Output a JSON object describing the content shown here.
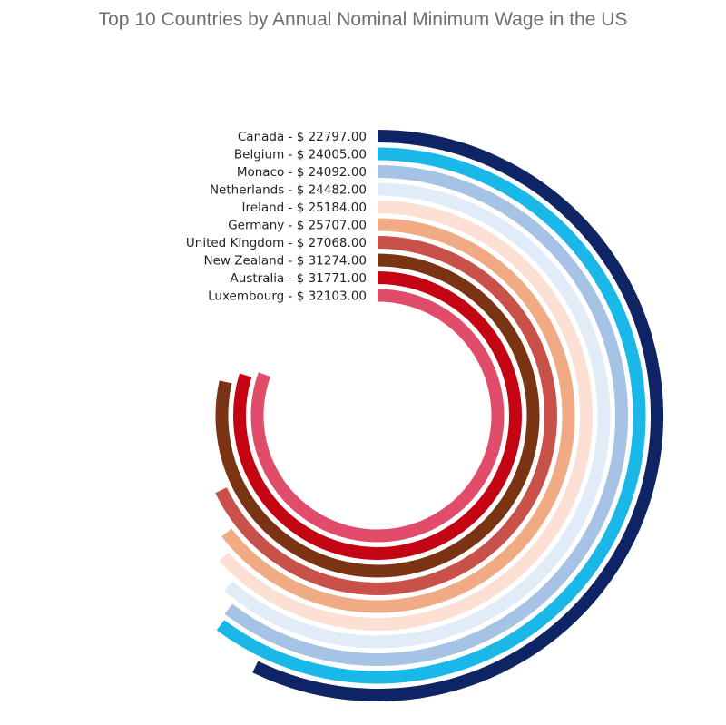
{
  "chart_data": {
    "type": "radial-bar",
    "title": "Top 10 Countries by Annual Nominal Minimum Wage in the US",
    "label_format": "{name} - $ {value}",
    "max_value": 32103.0,
    "bars": [
      {
        "name": "Canada",
        "value": 22797.0,
        "value_text": "22797.00",
        "color": "#0e2464"
      },
      {
        "name": "Belgium",
        "value": 24005.0,
        "value_text": "24005.00",
        "color": "#1ab8e8"
      },
      {
        "name": "Monaco",
        "value": 24092.0,
        "value_text": "24092.00",
        "color": "#a6c3e6"
      },
      {
        "name": "Netherlands",
        "value": 24482.0,
        "value_text": "24482.00",
        "color": "#e2ebf8"
      },
      {
        "name": "Ireland",
        "value": 25184.0,
        "value_text": "25184.00",
        "color": "#fce0d3"
      },
      {
        "name": "Germany",
        "value": 25707.0,
        "value_text": "25707.00",
        "color": "#f0ab84"
      },
      {
        "name": "United Kingdom",
        "value": 27068.0,
        "value_text": "27068.00",
        "color": "#c8524a"
      },
      {
        "name": "New Zealand",
        "value": 31274.0,
        "value_text": "31274.00",
        "color": "#7b3413"
      },
      {
        "name": "Australia",
        "value": 31771.0,
        "value_text": "31771.00",
        "color": "#c40412"
      },
      {
        "name": "Luxembourg",
        "value": 32103.0,
        "value_text": "32103.00",
        "color": "#e04c6a"
      }
    ]
  }
}
